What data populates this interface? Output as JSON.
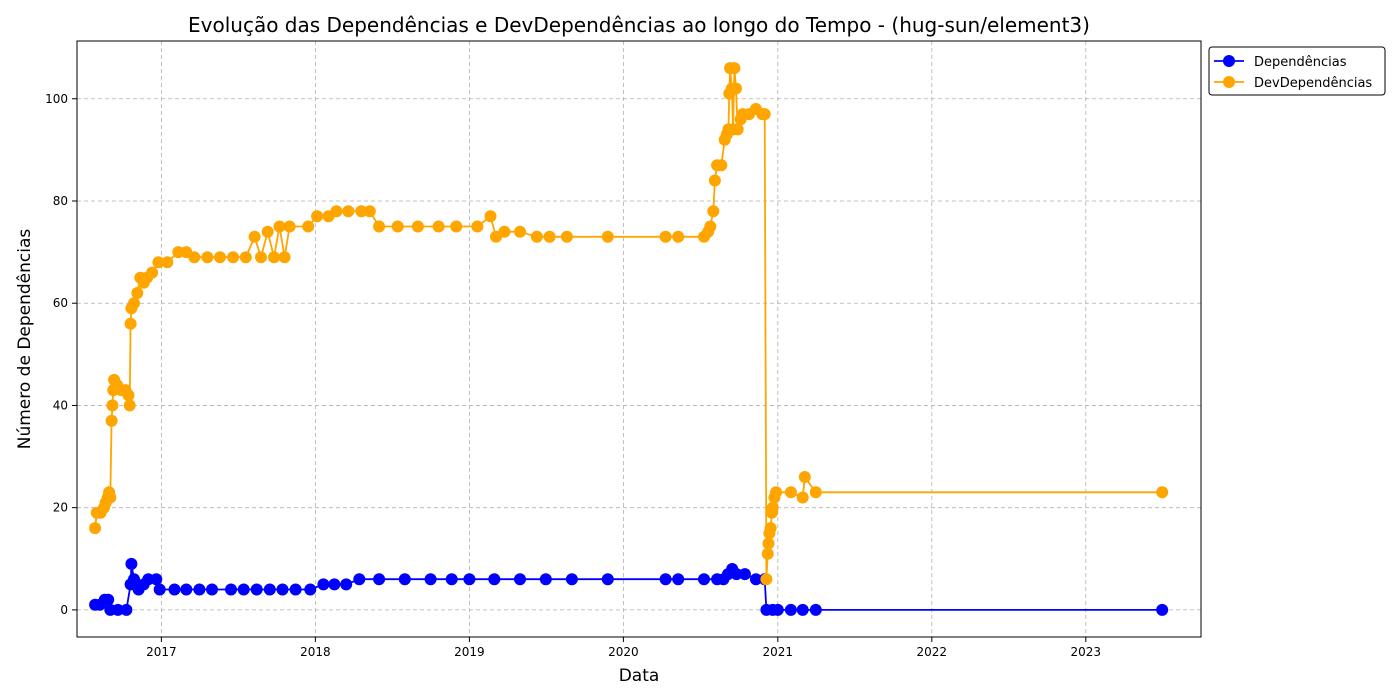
{
  "chart_data": {
    "type": "line",
    "title": "Evolução das Dependências e DevDependências ao longo do Tempo - (hug-sun/element3)",
    "xlabel": "Data",
    "ylabel": "Número de Dependências",
    "xlim": [
      "2016-06-15",
      "2023-10-01"
    ],
    "ylim": [
      -5.3,
      111.3
    ],
    "xticks": [
      "2017",
      "2018",
      "2019",
      "2020",
      "2021",
      "2022",
      "2023"
    ],
    "yticks": [
      "0",
      "20",
      "40",
      "60",
      "80",
      "100"
    ],
    "grid": true,
    "legend_position": "outside-top-right",
    "series": [
      {
        "name": "Dependências",
        "color": "#0000ff",
        "points": [
          [
            "2016-07-28",
            1
          ],
          [
            "2016-08-08",
            1
          ],
          [
            "2016-08-20",
            2
          ],
          [
            "2016-08-28",
            2
          ],
          [
            "2016-09-02",
            0
          ],
          [
            "2016-09-20",
            0
          ],
          [
            "2016-10-10",
            0
          ],
          [
            "2016-10-20",
            5
          ],
          [
            "2016-10-22",
            9
          ],
          [
            "2016-10-28",
            6
          ],
          [
            "2016-11-08",
            4
          ],
          [
            "2016-11-20",
            5
          ],
          [
            "2016-12-01",
            6
          ],
          [
            "2016-12-20",
            6
          ],
          [
            "2016-12-28",
            4
          ],
          [
            "2017-02-01",
            4
          ],
          [
            "2017-03-01",
            4
          ],
          [
            "2017-04-01",
            4
          ],
          [
            "2017-05-01",
            4
          ],
          [
            "2017-06-15",
            4
          ],
          [
            "2017-07-15",
            4
          ],
          [
            "2017-08-15",
            4
          ],
          [
            "2017-09-15",
            4
          ],
          [
            "2017-10-15",
            4
          ],
          [
            "2017-11-15",
            4
          ],
          [
            "2017-12-20",
            4
          ],
          [
            "2018-01-20",
            5
          ],
          [
            "2018-02-15",
            5
          ],
          [
            "2018-03-15",
            5
          ],
          [
            "2018-04-15",
            6
          ],
          [
            "2018-06-01",
            6
          ],
          [
            "2018-08-01",
            6
          ],
          [
            "2018-10-01",
            6
          ],
          [
            "2018-11-20",
            6
          ],
          [
            "2019-01-01",
            6
          ],
          [
            "2019-03-01",
            6
          ],
          [
            "2019-05-01",
            6
          ],
          [
            "2019-07-01",
            6
          ],
          [
            "2019-09-01",
            6
          ],
          [
            "2019-11-25",
            6
          ],
          [
            "2020-04-10",
            6
          ],
          [
            "2020-05-10",
            6
          ],
          [
            "2020-07-10",
            6
          ],
          [
            "2020-08-10",
            6
          ],
          [
            "2020-08-25",
            6
          ],
          [
            "2020-09-05",
            7
          ],
          [
            "2020-09-15",
            8
          ],
          [
            "2020-09-25",
            7
          ],
          [
            "2020-10-15",
            7
          ],
          [
            "2020-11-10",
            6
          ],
          [
            "2020-12-01",
            6
          ],
          [
            "2020-12-05",
            0
          ],
          [
            "2020-12-20",
            0
          ],
          [
            "2021-01-01",
            0
          ],
          [
            "2021-02-01",
            0
          ],
          [
            "2021-03-01",
            0
          ],
          [
            "2021-04-01",
            0
          ],
          [
            "2023-07-01",
            0
          ]
        ]
      },
      {
        "name": "DevDependências",
        "color": "#ffa500",
        "points": [
          [
            "2016-07-28",
            16
          ],
          [
            "2016-08-01",
            19
          ],
          [
            "2016-08-10",
            19
          ],
          [
            "2016-08-18",
            20
          ],
          [
            "2016-08-22",
            21
          ],
          [
            "2016-08-27",
            22
          ],
          [
            "2016-08-30",
            23
          ],
          [
            "2016-09-02",
            22
          ],
          [
            "2016-09-05",
            37
          ],
          [
            "2016-09-07",
            40
          ],
          [
            "2016-09-09",
            43
          ],
          [
            "2016-09-11",
            45
          ],
          [
            "2016-09-18",
            44
          ],
          [
            "2016-09-28",
            43
          ],
          [
            "2016-10-08",
            43
          ],
          [
            "2016-10-15",
            42
          ],
          [
            "2016-10-18",
            40
          ],
          [
            "2016-10-20",
            56
          ],
          [
            "2016-10-22",
            59
          ],
          [
            "2016-10-28",
            60
          ],
          [
            "2016-11-05",
            62
          ],
          [
            "2016-11-12",
            65
          ],
          [
            "2016-11-20",
            64
          ],
          [
            "2016-11-28",
            65
          ],
          [
            "2016-12-10",
            66
          ],
          [
            "2016-12-25",
            68
          ],
          [
            "2017-01-15",
            68
          ],
          [
            "2017-02-10",
            70
          ],
          [
            "2017-03-01",
            70
          ],
          [
            "2017-03-20",
            69
          ],
          [
            "2017-04-20",
            69
          ],
          [
            "2017-05-20",
            69
          ],
          [
            "2017-06-20",
            69
          ],
          [
            "2017-07-20",
            69
          ],
          [
            "2017-08-10",
            73
          ],
          [
            "2017-08-25",
            69
          ],
          [
            "2017-09-10",
            74
          ],
          [
            "2017-09-25",
            69
          ],
          [
            "2017-10-08",
            75
          ],
          [
            "2017-10-20",
            69
          ],
          [
            "2017-11-01",
            75
          ],
          [
            "2017-12-15",
            75
          ],
          [
            "2018-01-05",
            77
          ],
          [
            "2018-02-01",
            77
          ],
          [
            "2018-02-20",
            78
          ],
          [
            "2018-03-20",
            78
          ],
          [
            "2018-04-20",
            78
          ],
          [
            "2018-05-10",
            78
          ],
          [
            "2018-06-01",
            75
          ],
          [
            "2018-07-15",
            75
          ],
          [
            "2018-09-01",
            75
          ],
          [
            "2018-10-20",
            75
          ],
          [
            "2018-12-01",
            75
          ],
          [
            "2019-01-20",
            75
          ],
          [
            "2019-02-20",
            77
          ],
          [
            "2019-03-05",
            73
          ],
          [
            "2019-03-25",
            74
          ],
          [
            "2019-05-01",
            74
          ],
          [
            "2019-06-10",
            73
          ],
          [
            "2019-07-10",
            73
          ],
          [
            "2019-08-20",
            73
          ],
          [
            "2019-11-25",
            73
          ],
          [
            "2020-04-10",
            73
          ],
          [
            "2020-05-10",
            73
          ],
          [
            "2020-07-10",
            73
          ],
          [
            "2020-07-20",
            74
          ],
          [
            "2020-07-25",
            75
          ],
          [
            "2020-08-01",
            78
          ],
          [
            "2020-08-05",
            84
          ],
          [
            "2020-08-10",
            87
          ],
          [
            "2020-08-20",
            87
          ],
          [
            "2020-08-28",
            92
          ],
          [
            "2020-09-02",
            93
          ],
          [
            "2020-09-06",
            94
          ],
          [
            "2020-09-08",
            101
          ],
          [
            "2020-09-10",
            106
          ],
          [
            "2020-09-14",
            102
          ],
          [
            "2020-09-17",
            94
          ],
          [
            "2020-09-20",
            106
          ],
          [
            "2020-09-24",
            102
          ],
          [
            "2020-09-28",
            94
          ],
          [
            "2020-10-05",
            96
          ],
          [
            "2020-10-10",
            97
          ],
          [
            "2020-10-25",
            97
          ],
          [
            "2020-11-10",
            98
          ],
          [
            "2020-11-25",
            97
          ],
          [
            "2020-12-01",
            97
          ],
          [
            "2020-12-05",
            6
          ],
          [
            "2020-12-08",
            11
          ],
          [
            "2020-12-10",
            13
          ],
          [
            "2020-12-12",
            15
          ],
          [
            "2020-12-15",
            16
          ],
          [
            "2020-12-18",
            19
          ],
          [
            "2020-12-20",
            20
          ],
          [
            "2020-12-24",
            22
          ],
          [
            "2020-12-28",
            23
          ],
          [
            "2021-02-01",
            23
          ],
          [
            "2021-03-01",
            22
          ],
          [
            "2021-03-06",
            26
          ],
          [
            "2021-04-01",
            23
          ],
          [
            "2023-07-01",
            23
          ]
        ]
      }
    ]
  }
}
